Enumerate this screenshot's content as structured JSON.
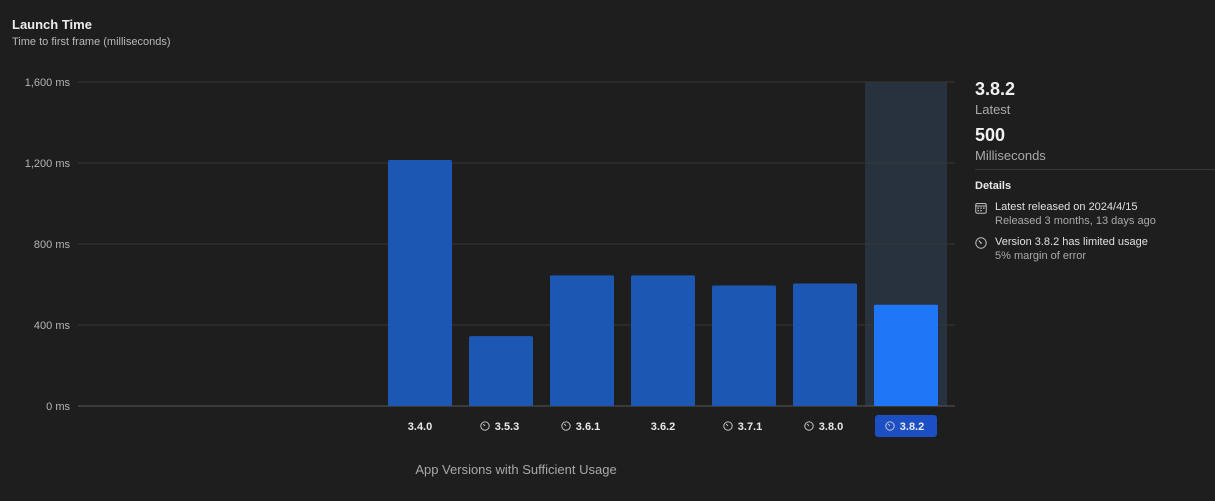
{
  "header": {
    "title": "Launch Time",
    "subtitle": "Time to first frame (milliseconds)"
  },
  "chart_data": {
    "type": "bar",
    "title": "Launch Time",
    "subtitle": "Time to first frame (milliseconds)",
    "xlabel": "App Versions with Sufficient Usage",
    "ylabel": "",
    "ylim": [
      0,
      1600
    ],
    "yticks": [
      0,
      400,
      800,
      1200,
      1600
    ],
    "ytick_labels": [
      "0 ms",
      "400 ms",
      "800 ms",
      "1,200 ms",
      "1,600 ms"
    ],
    "grid": true,
    "categories": [
      "3.4.0",
      "3.5.3",
      "3.6.1",
      "3.6.2",
      "3.7.1",
      "3.8.0",
      "3.8.2"
    ],
    "values": [
      1215,
      345,
      645,
      645,
      595,
      605,
      500
    ],
    "limited_usage": [
      false,
      true,
      true,
      false,
      true,
      true,
      true
    ],
    "selected": "3.8.2",
    "colors": {
      "bar": "#1c57b3",
      "bar_selected": "#1f77f7",
      "highlight_band": "#28323e",
      "label_selected_bg": "#1c4fc4",
      "grid": "#353535",
      "axis": "#555555"
    }
  },
  "summary": {
    "version": "3.8.2",
    "version_caption": "Latest",
    "value": "500",
    "value_caption": "Milliseconds"
  },
  "details": {
    "heading": "Details",
    "items": [
      {
        "icon": "calendar-icon",
        "line1": "Latest released on 2024/4/15",
        "line2": "Released 3 months, 13 days ago"
      },
      {
        "icon": "gauge-icon",
        "line1": "Version 3.8.2 has limited usage",
        "line2": "5% margin of error"
      }
    ]
  }
}
